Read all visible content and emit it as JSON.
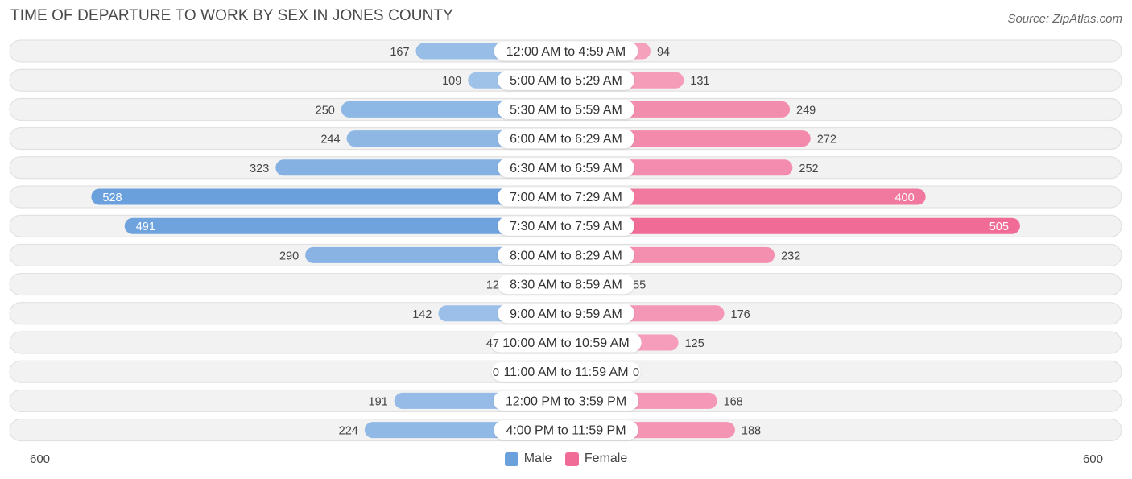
{
  "header": {
    "title": "TIME OF DEPARTURE TO WORK BY SEX IN JONES COUNTY",
    "source": "Source: ZipAtlas.com"
  },
  "axis": {
    "left_label": "600",
    "right_label": "600"
  },
  "legend": [
    {
      "label": "Male",
      "color": "#6aa0dc"
    },
    {
      "label": "Female",
      "color": "#f06b96"
    }
  ],
  "chart_data": {
    "type": "bar",
    "orientation": "horizontal-diverging",
    "title": "TIME OF DEPARTURE TO WORK BY SEX IN JONES COUNTY",
    "categories": [
      "12:00 AM to 4:59 AM",
      "5:00 AM to 5:29 AM",
      "5:30 AM to 5:59 AM",
      "6:00 AM to 6:29 AM",
      "6:30 AM to 6:59 AM",
      "7:00 AM to 7:29 AM",
      "7:30 AM to 7:59 AM",
      "8:00 AM to 8:29 AM",
      "8:30 AM to 8:59 AM",
      "9:00 AM to 9:59 AM",
      "10:00 AM to 10:59 AM",
      "11:00 AM to 11:59 AM",
      "12:00 PM to 3:59 PM",
      "4:00 PM to 11:59 PM"
    ],
    "series": [
      {
        "name": "Male",
        "color": "#6aa0dc",
        "values": [
          167,
          109,
          250,
          244,
          323,
          528,
          491,
          290,
          12,
          142,
          47,
          0,
          191,
          224
        ]
      },
      {
        "name": "Female",
        "color": "#f06b96",
        "values": [
          94,
          131,
          249,
          272,
          252,
          400,
          505,
          232,
          55,
          176,
          125,
          0,
          168,
          188
        ]
      }
    ],
    "xlim": [
      -600,
      600
    ],
    "legend_position": "bottom-center",
    "grid": false
  }
}
